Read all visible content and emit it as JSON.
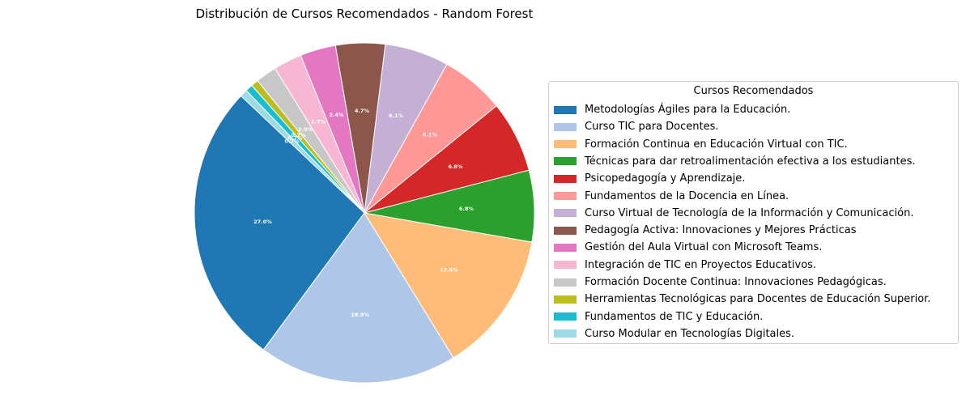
{
  "chart_data": {
    "type": "pie",
    "title": "Distribución de Cursos Recomendados - Random Forest",
    "legend_title": "Cursos Recomendados",
    "legend_position": "right",
    "slices": [
      {
        "label": "Metodologías Ágiles para la Educación.",
        "value": 27.0,
        "pct_label": "27.0%",
        "color": "#1f77b4"
      },
      {
        "label": "Curso TIC para Docentes.",
        "value": 18.9,
        "pct_label": "18.9%",
        "color": "#aec7e8"
      },
      {
        "label": "Formación Continua en Educación Virtual con TIC.",
        "value": 13.5,
        "pct_label": "13.5%",
        "color": "#ffbb78"
      },
      {
        "label": "Técnicas para dar retroalimentación efectiva a los estudiantes.",
        "value": 6.8,
        "pct_label": "6.8%",
        "color": "#2ca02c"
      },
      {
        "label": "Psicopedagogía y Aprendizaje.",
        "value": 6.8,
        "pct_label": "6.8%",
        "color": "#d62728"
      },
      {
        "label": "Fundamentos de la Docencia en Línea.",
        "value": 6.1,
        "pct_label": "6.1%",
        "color": "#ff9896"
      },
      {
        "label": "Curso Virtual de Tecnología de la Información y Comunicación.",
        "value": 6.1,
        "pct_label": "6.1%",
        "color": "#c5b0d5"
      },
      {
        "label": "Pedagogía Activa: Innovaciones y Mejores Prácticas",
        "value": 4.7,
        "pct_label": "4.7%",
        "color": "#8c564b"
      },
      {
        "label": "Gestión del Aula Virtual con Microsoft Teams.",
        "value": 3.4,
        "pct_label": "3.4%",
        "color": "#e377c2"
      },
      {
        "label": "Integración de TIC en Proyectos Educativos.",
        "value": 2.7,
        "pct_label": "2.7%",
        "color": "#f7b6d2"
      },
      {
        "label": "Formación Docente Continua: Innovaciones Pedagógicas.",
        "value": 2.0,
        "pct_label": "2.0%",
        "color": "#c7c7c7"
      },
      {
        "label": "Herramientas Tecnológicas para Docentes de Educación Superior.",
        "value": 0.7,
        "pct_label": "0.7%",
        "color": "#bcbd22"
      },
      {
        "label": "Fundamentos de TIC y Educación.",
        "value": 0.7,
        "pct_label": "0.7%",
        "color": "#17becf"
      },
      {
        "label": "Curso Modular en Tecnologías Digitales.",
        "value": 0.7,
        "pct_label": "0.7%",
        "color": "#9edae5"
      }
    ]
  }
}
